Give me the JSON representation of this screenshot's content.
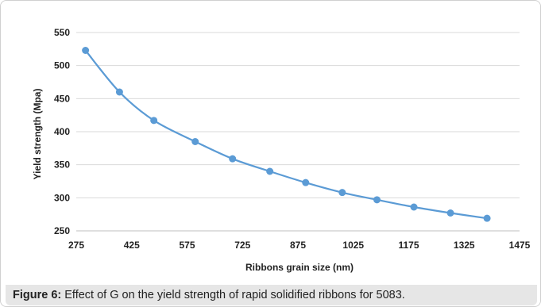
{
  "caption": {
    "label": "Figure 6:",
    "text": " Effect of G on the yield strength of rapid solidified ribbons for 5083."
  },
  "chart_data": {
    "type": "line",
    "title": "",
    "xlabel": "Ribbons grain size (nm)",
    "ylabel": "Yield strength (Mpa)",
    "xlim": [
      275,
      1475
    ],
    "ylim": [
      250,
      550
    ],
    "xticks": [
      275,
      425,
      575,
      725,
      875,
      1025,
      1175,
      1325,
      1475
    ],
    "yticks": [
      250,
      300,
      350,
      400,
      450,
      500,
      550
    ],
    "grid": "horizontal",
    "legend": "none",
    "series": [
      {
        "color": "#5b9bd5",
        "marker": "circle",
        "smooth": true,
        "x": [
          300,
          392,
          485,
          597,
          698,
          799,
          896,
          995,
          1089,
          1189,
          1288,
          1387
        ],
        "y": [
          523,
          460,
          417,
          385,
          359,
          340,
          323,
          308,
          297,
          286,
          277,
          269
        ]
      }
    ]
  }
}
